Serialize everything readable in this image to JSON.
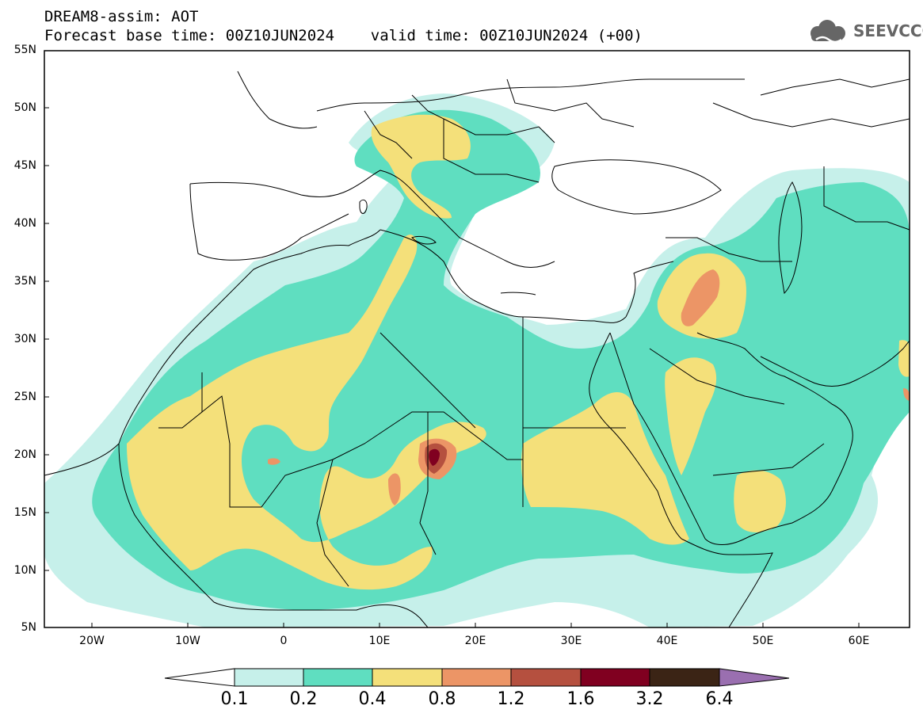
{
  "header": {
    "title_line1": "DREAM8-assim: AOT",
    "title_line2": "Forecast base time: 00Z10JUN2024    valid time: 00Z10JUN2024 (+00)",
    "logo_text": "SEEVCCC"
  },
  "axes": {
    "y_labels": [
      "55N",
      "50N",
      "45N",
      "40N",
      "35N",
      "30N",
      "25N",
      "20N",
      "15N",
      "10N",
      "5N"
    ],
    "x_labels": [
      "20W",
      "10W",
      "0",
      "10E",
      "20E",
      "30E",
      "40E",
      "50E",
      "60E"
    ],
    "lon_range": [
      -25,
      65
    ],
    "lat_range": [
      5,
      55
    ]
  },
  "colorbar": {
    "levels": [
      "0.1",
      "0.2",
      "0.4",
      "0.8",
      "1.2",
      "1.6",
      "3.2",
      "6.4"
    ],
    "colors": [
      "#c6f0ea",
      "#5fdec0",
      "#f4e07a",
      "#ec9566",
      "#b5503f",
      "#800020",
      "#3b2415",
      "#9a6fb0"
    ]
  },
  "map_data": {
    "variable": "Aerosol Optical Thickness",
    "palette": {
      "aot_01_02": "#c6f0ea",
      "aot_02_04": "#5fdec0",
      "aot_04_08": "#f4e07a",
      "aot_08_12": "#ec9566",
      "aot_12_16": "#b5503f",
      "aot_16_32": "#800020"
    }
  }
}
